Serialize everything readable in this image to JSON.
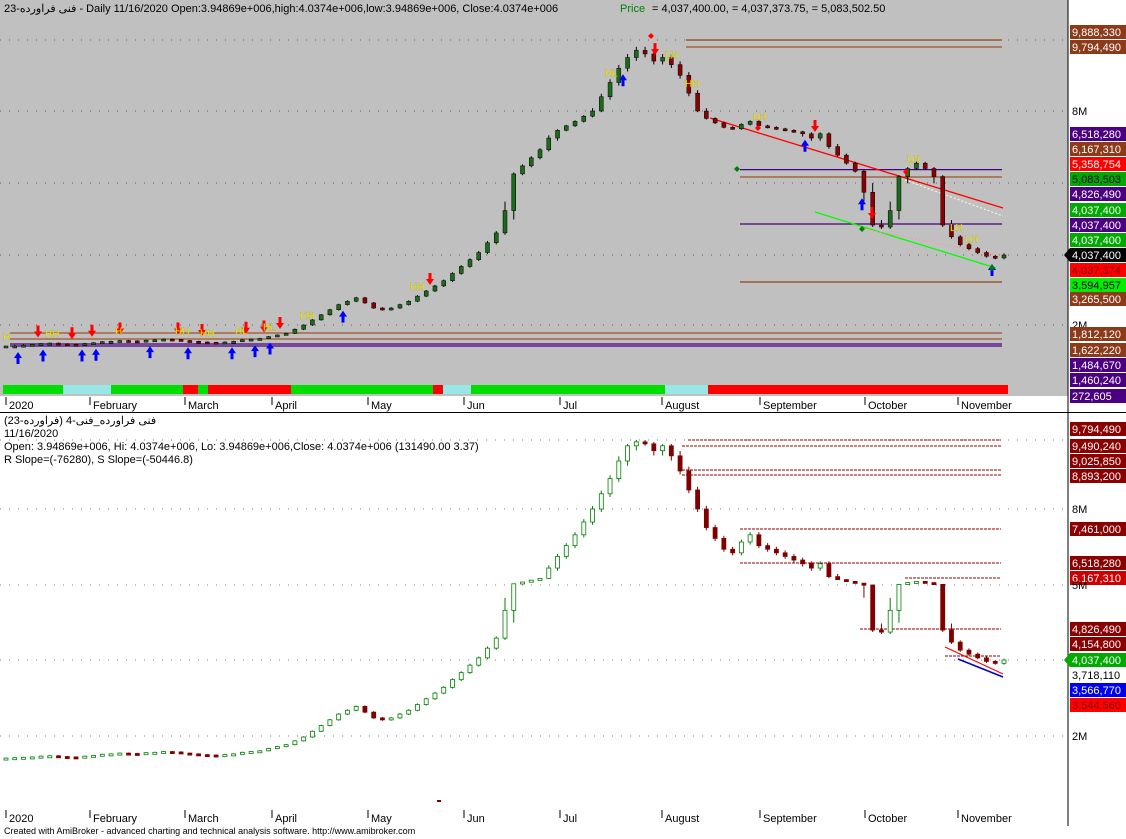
{
  "colors": {
    "top_bg": "#c0c0c0",
    "bottom_bg": "#ffffff",
    "bull": "#008000",
    "bear": "#800000",
    "up_arrow": "#0000ff",
    "down_arrow": "#ff0000",
    "hh_label": "#ffff00",
    "trend_red": "#ff0000",
    "trend_green": "#00ff00",
    "level_brown": "#a0522d",
    "level_purple": "#4b0082",
    "level_red_dash": "#8b0000"
  },
  "top_panel": {
    "header": {
      "title": "فنی فراورده-23 - Daily 11/16/2020 Open:3.94869e+006,high:4.0374e+006,low:3.94869e+006, Close:4.0374e+006",
      "price_label": "Price",
      "price_values": "= 4,037,400.00,   = 4,037,373.75,   = 5,083,502.50"
    },
    "axis_labels": [
      "9,888,330",
      "9,794,490",
      "8M",
      "6,518,280",
      "6,167,310",
      "5,358,754",
      "5,083,503",
      "4,826,490",
      "4,037,400",
      "4,037,400",
      "4,037,400",
      "4,037,400",
      "4,037,374",
      "3,594,957",
      "3,265,500",
      "2M",
      "1,812,120",
      "1,622,220",
      "1,484,670",
      "1,460,240",
      "272,605"
    ]
  },
  "bottom_panel": {
    "header": {
      "line1": "فنی فراورده_فنی-4 (فراورده-23)",
      "line2": "11/16/2020",
      "line3": "Open: 3.94869e+006, Hi: 4.0374e+006, Lo: 3.94869e+006,Close: 4.0374e+006 (131490.00 3.37)",
      "line4": "R Slope=(-76280), S Slope=(-50446.8)"
    },
    "axis_labels": [
      "9,794,490",
      "9,490,240",
      "9,025,850",
      "8,893,200",
      "8M",
      "7,461,000",
      "6,518,280",
      "6,167,310",
      "5M",
      "4,826,490",
      "4,154,800",
      "4,037,400",
      "3,718,110",
      "3,566,770",
      "3,544,560",
      "2M"
    ]
  },
  "chart_data": [
    {
      "type": "candlestick",
      "panel": "top",
      "title": "فنی فراورده-23 - Daily 11/16/2020",
      "months": [
        "2020",
        "February",
        "March",
        "April",
        "May",
        "Jun",
        "Jul",
        "August",
        "September",
        "October",
        "November"
      ],
      "ohlc_last": {
        "open": 3948690,
        "high": 4037400,
        "low": 3948690,
        "close": 4037400
      },
      "close_series_approx": [
        1450000,
        1460000,
        1470000,
        1480000,
        1500000,
        1510000,
        1490000,
        1480000,
        1470000,
        1500000,
        1520000,
        1550000,
        1560000,
        1580000,
        1570000,
        1560000,
        1590000,
        1600000,
        1620000,
        1610000,
        1580000,
        1560000,
        1540000,
        1530000,
        1520000,
        1540000,
        1560000,
        1600000,
        1620000,
        1640000,
        1700000,
        1750000,
        1800000,
        1900000,
        2000000,
        2150000,
        2300000,
        2450000,
        2600000,
        2700000,
        2800000,
        2650000,
        2500000,
        2450000,
        2500000,
        2600000,
        2700000,
        2850000,
        3000000,
        3150000,
        3300000,
        3500000,
        3700000,
        3900000,
        4100000,
        4350000,
        4600000,
        4900000,
        5200000,
        5500000,
        5800000,
        6100000,
        6400000,
        6700000,
        7000000,
        7300000,
        7650000,
        8000000,
        8400000,
        8800000,
        9200000,
        9500000,
        9700000,
        9600000,
        9400000,
        9500000,
        9300000,
        9000000,
        8500000,
        8000000,
        7500000,
        7200000,
        6900000,
        6800000,
        7100000,
        7300000,
        7000000,
        6900000,
        6800000,
        6700000,
        6600000,
        6500000,
        6400000,
        6500000,
        6200000,
        5900000,
        5600000,
        5300000,
        5000000,
        4800000,
        4750000,
        4900000,
        5100000,
        5400000,
        5600000,
        5400000,
        5100000,
        4800000,
        4500000,
        4300000,
        4200000,
        4100000,
        4000000,
        3950000,
        4037400
      ],
      "levels": [
        9888330,
        9794490,
        6518280,
        6167310,
        5358754,
        5083503,
        4826490,
        4037400,
        3594957,
        3265500,
        1812120,
        1622220,
        1484670,
        1460240
      ],
      "trendlines": [
        "resistance red descending",
        "support green descending"
      ],
      "pivot_labels": [
        "H",
        "HH",
        "LH",
        "HL"
      ],
      "grid": true
    },
    {
      "type": "candlestick",
      "panel": "bottom",
      "title": "فنی فراورده_فنی-4 (فراورده-23)",
      "months": [
        "2020",
        "February",
        "March",
        "April",
        "May",
        "Jun",
        "Jul",
        "August",
        "September",
        "October",
        "November"
      ],
      "r_slope": -76280,
      "s_slope": -50446.8,
      "levels": [
        9794490,
        9490240,
        9025850,
        8893200,
        7461000,
        6518280,
        6167310,
        4826490,
        4154800,
        3718110,
        3566770,
        3544560
      ],
      "grid": true
    }
  ],
  "footer": "Created with AmiBroker - advanced charting and technical analysis software. http://www.amibroker.com"
}
